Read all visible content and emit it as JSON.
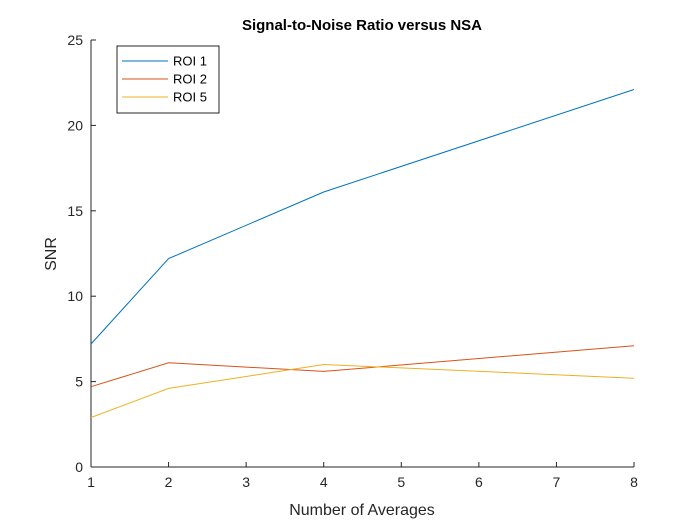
{
  "chart_data": {
    "type": "line",
    "title": "Signal-to-Noise Ratio versus NSA",
    "xlabel": "Number of Averages",
    "ylabel": "SNR",
    "xlim": [
      1,
      8
    ],
    "ylim": [
      0,
      25
    ],
    "xticks": [
      "1",
      "2",
      "3",
      "4",
      "5",
      "6",
      "7",
      "8"
    ],
    "yticks": [
      "0",
      "5",
      "10",
      "15",
      "20",
      "25"
    ],
    "grid": false,
    "legend_position": "top-left",
    "series": [
      {
        "name": "ROI 1",
        "color": "#0072BD",
        "x": [
          1,
          2,
          4,
          8
        ],
        "y": [
          7.2,
          12.2,
          16.1,
          22.1
        ]
      },
      {
        "name": "ROI 2",
        "color": "#D95319",
        "x": [
          1,
          2,
          4,
          8
        ],
        "y": [
          4.7,
          6.1,
          5.6,
          7.1
        ]
      },
      {
        "name": "ROI 5",
        "color": "#EDB120",
        "x": [
          1,
          2,
          4,
          8
        ],
        "y": [
          2.9,
          4.6,
          6.0,
          5.2
        ]
      }
    ]
  }
}
